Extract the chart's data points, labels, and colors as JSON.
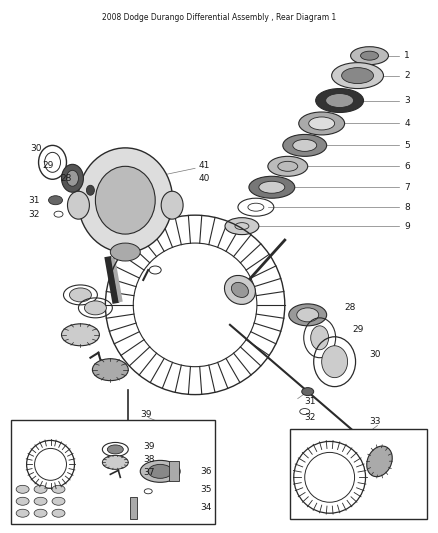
{
  "title": "2008 Dodge Durango Differential Assembly , Rear Diagram 1",
  "bg": "#f5f5f5",
  "lc": "#2a2a2a",
  "tc": "#1a1a1a",
  "gray1": "#cccccc",
  "gray2": "#999999",
  "gray3": "#555555",
  "gray4": "#333333",
  "gray5": "#bbbbbb",
  "gray6": "#777777",
  "fig_w": 4.38,
  "fig_h": 5.33,
  "dpi": 100
}
